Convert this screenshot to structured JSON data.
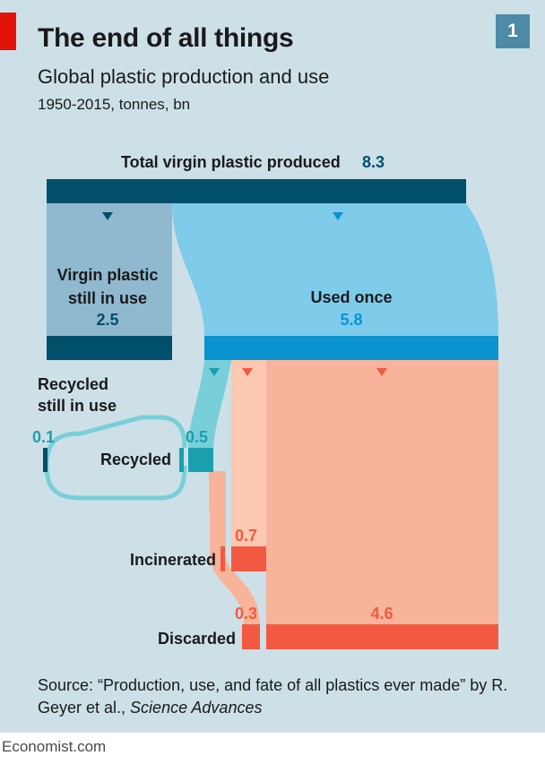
{
  "header": {
    "title": "The end of all things",
    "subtitle": "Global plastic production and use",
    "units": "1950-2015, tonnes, bn",
    "chart_number": "1"
  },
  "flows": {
    "total": {
      "label": "Total virgin plastic produced",
      "value": "8.3"
    },
    "still_in_use": {
      "label_line1": "Virgin plastic",
      "label_line2": "still in use",
      "value": "2.5"
    },
    "used_once": {
      "label": "Used once",
      "value": "5.8"
    },
    "recycled_still_in_use": {
      "label_line1": "Recycled",
      "label_line2": "still in use",
      "value": "0.1"
    },
    "recycled": {
      "label": "Recycled",
      "value": "0.5"
    },
    "incinerated": {
      "label": "Incinerated",
      "value": "0.7"
    },
    "discarded": {
      "label": "Discarded",
      "value_from_recycled": "0.3",
      "value_direct": "4.6"
    }
  },
  "colors": {
    "background": "#cde0e7",
    "dark_blue": "#004f6b",
    "grey_blue": "#90b9cf",
    "light_blue": "#7fcbea",
    "blue_bar": "#0a93d0",
    "teal": "#1aa0ad",
    "teal_light": "#79cfd9",
    "salmon": "#f7b49b",
    "salmon_light": "#fbc8b2",
    "red_orange": "#f15a40",
    "brand_red": "#e3120b"
  },
  "source": {
    "prefix": "Source: “Production, use, and fate of all plastics ever made” by R. Geyer et al., ",
    "journal": "Science Advances"
  },
  "brand": "Economist.com"
}
